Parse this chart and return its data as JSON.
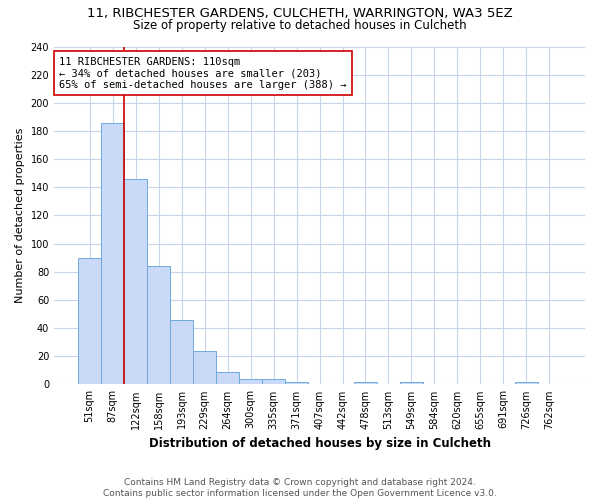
{
  "title_line1": "11, RIBCHESTER GARDENS, CULCHETH, WARRINGTON, WA3 5EZ",
  "title_line2": "Size of property relative to detached houses in Culcheth",
  "xlabel": "Distribution of detached houses by size in Culcheth",
  "ylabel": "Number of detached properties",
  "categories": [
    "51sqm",
    "87sqm",
    "122sqm",
    "158sqm",
    "193sqm",
    "229sqm",
    "264sqm",
    "300sqm",
    "335sqm",
    "371sqm",
    "407sqm",
    "442sqm",
    "478sqm",
    "513sqm",
    "549sqm",
    "584sqm",
    "620sqm",
    "655sqm",
    "691sqm",
    "726sqm",
    "762sqm"
  ],
  "values": [
    90,
    186,
    146,
    84,
    46,
    24,
    9,
    4,
    4,
    2,
    0,
    0,
    2,
    0,
    2,
    0,
    0,
    0,
    0,
    2,
    0
  ],
  "bar_color": "#c9daf8",
  "bar_edge_color": "#6fa8dc",
  "property_line_color": "#cc0000",
  "annotation_text": "11 RIBCHESTER GARDENS: 110sqm\n← 34% of detached houses are smaller (203)\n65% of semi-detached houses are larger (388) →",
  "annotation_box_color": "#ffffff",
  "annotation_box_edge_color": "#cc0000",
  "ylim": [
    0,
    240
  ],
  "yticks": [
    0,
    20,
    40,
    60,
    80,
    100,
    120,
    140,
    160,
    180,
    200,
    220,
    240
  ],
  "background_color": "#ffffff",
  "grid_color": "#c8d4e8",
  "footer_line1": "Contains HM Land Registry data © Crown copyright and database right 2024.",
  "footer_line2": "Contains public sector information licensed under the Open Government Licence v3.0.",
  "title_fontsize": 9.5,
  "subtitle_fontsize": 8.5,
  "axis_label_fontsize": 8,
  "tick_fontsize": 7,
  "annotation_fontsize": 7.5,
  "footer_fontsize": 6.5
}
